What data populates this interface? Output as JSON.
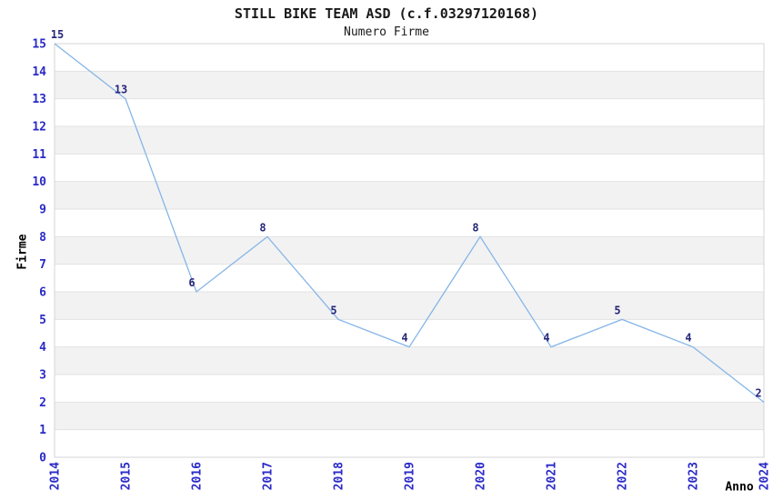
{
  "chart_data": {
    "type": "line",
    "title": "STILL BIKE TEAM ASD (c.f.03297120168)",
    "subtitle": "Numero Firme",
    "xlabel": "Anno",
    "ylabel": "Firme",
    "x": [
      2014,
      2015,
      2016,
      2017,
      2018,
      2019,
      2020,
      2021,
      2022,
      2023,
      2024
    ],
    "values": [
      15,
      13,
      6,
      8,
      5,
      4,
      8,
      4,
      5,
      4,
      2
    ],
    "point_labels": [
      "15",
      "13",
      "6",
      "8",
      "5",
      "4",
      "8",
      "4",
      "5",
      "4",
      "2"
    ],
    "ylim": [
      0,
      15
    ],
    "yticks": [
      0,
      1,
      2,
      3,
      4,
      5,
      6,
      7,
      8,
      9,
      10,
      11,
      12,
      13,
      14,
      15
    ],
    "grid": "horizontal-only",
    "band_rows": "odd unit rows shaded",
    "legend": "none"
  },
  "colors": {
    "line": "#85b5e8",
    "tick_label": "#2a2ac8",
    "point_label": "#26267a",
    "band": "#f2f2f2",
    "grid": "#e2e2e2",
    "border": "#d4d4d4",
    "text": "#1a1a1a",
    "background": "#ffffff"
  }
}
